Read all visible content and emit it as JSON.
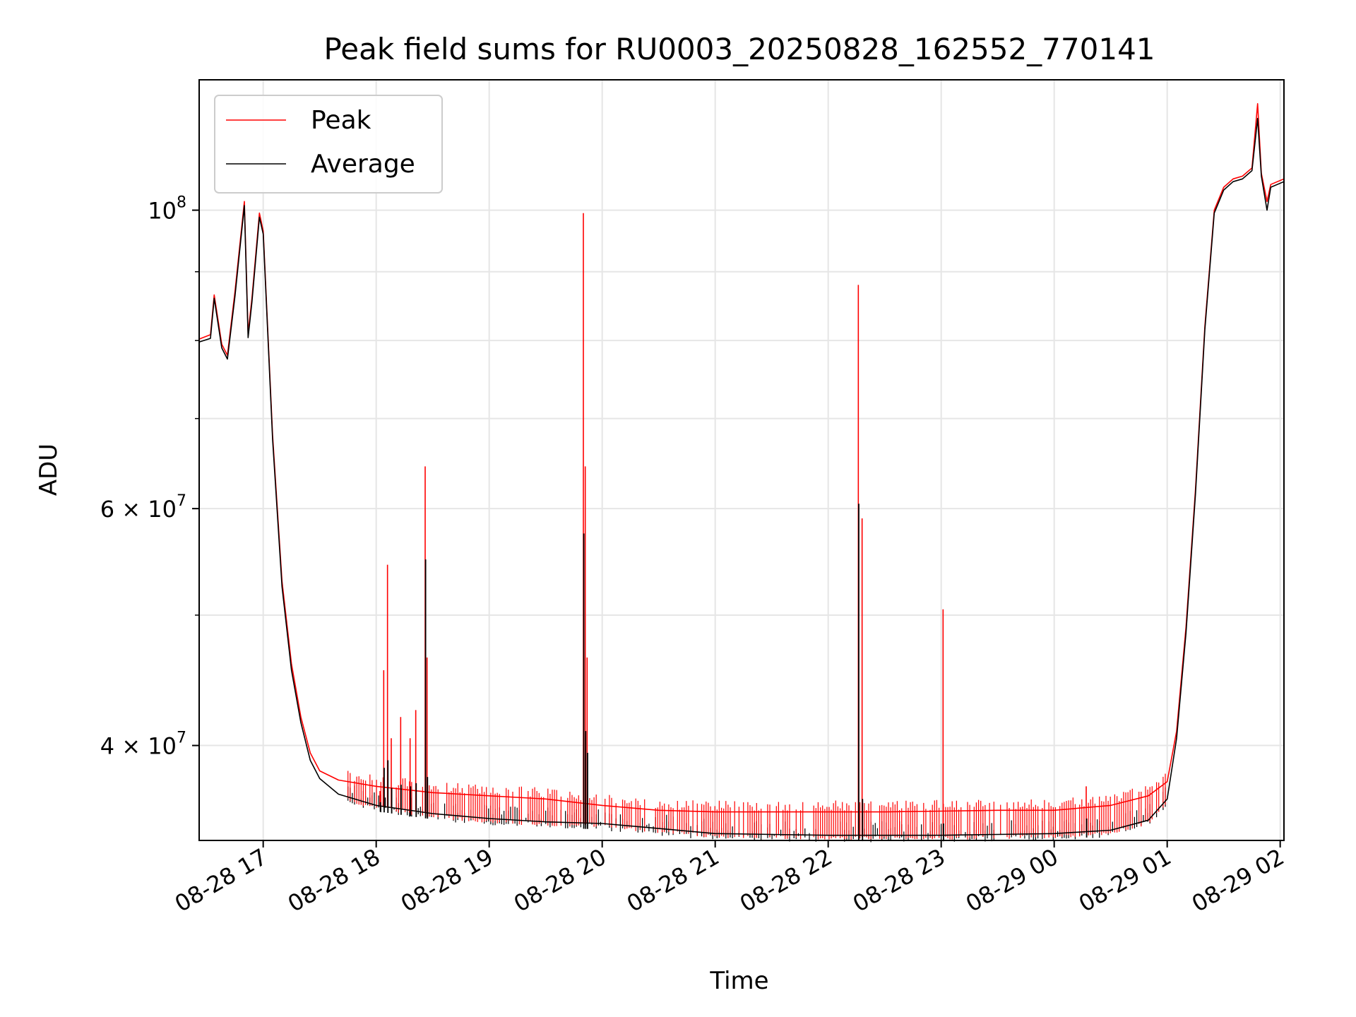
{
  "chart_data": {
    "type": "line",
    "title": "Peak field sums for RU0003_20250828_162552_770141",
    "xlabel": "Time",
    "ylabel": "ADU",
    "x_range": [
      "2025-08-28 16:26",
      "2025-08-29 02:02"
    ],
    "y_scale": "log",
    "ylim": [
      34000000,
      125000000
    ],
    "grid": true,
    "legend_position": "top-left",
    "x_ticks": [
      "08-28 17",
      "08-28 18",
      "08-28 19",
      "08-28 20",
      "08-28 21",
      "08-28 22",
      "08-28 23",
      "08-29 00",
      "08-29 01",
      "08-29 02"
    ],
    "y_ticks": [
      {
        "value": 40000000,
        "base": "4",
        "mult": "×",
        "exp_base": "10",
        "exp": "7"
      },
      {
        "value": 60000000,
        "base": "6",
        "mult": "×",
        "exp_base": "10",
        "exp": "7"
      },
      {
        "value": 100000000,
        "base": "",
        "mult": "",
        "exp_base": "10",
        "exp": "8"
      }
    ],
    "y_minor_ticks": [
      50000000,
      70000000,
      80000000,
      90000000
    ],
    "series": [
      {
        "name": "Peak",
        "color": "#ff0000",
        "x": [
          "2025-08-28 16:26",
          "2025-08-28 16:32",
          "2025-08-28 16:34",
          "2025-08-28 16:38",
          "2025-08-28 16:41",
          "2025-08-28 16:45",
          "2025-08-28 16:50",
          "2025-08-28 16:52",
          "2025-08-28 16:54",
          "2025-08-28 16:58",
          "2025-08-28 17:00",
          "2025-08-28 17:05",
          "2025-08-28 17:10",
          "2025-08-28 17:15",
          "2025-08-28 17:20",
          "2025-08-28 17:25",
          "2025-08-28 17:30",
          "2025-08-28 17:40",
          "2025-08-28 18:00",
          "2025-08-28 18:30",
          "2025-08-28 19:00",
          "2025-08-28 19:30",
          "2025-08-28 20:00",
          "2025-08-28 20:30",
          "2025-08-28 21:00",
          "2025-08-28 21:30",
          "2025-08-28 22:00",
          "2025-08-28 22:30",
          "2025-08-28 23:00",
          "2025-08-28 23:30",
          "2025-08-29 00:00",
          "2025-08-29 00:30",
          "2025-08-29 00:50",
          "2025-08-29 01:00",
          "2025-08-29 01:05",
          "2025-08-29 01:10",
          "2025-08-29 01:15",
          "2025-08-29 01:20",
          "2025-08-29 01:25",
          "2025-08-29 01:30",
          "2025-08-29 01:35",
          "2025-08-29 01:40",
          "2025-08-29 01:45",
          "2025-08-29 01:48",
          "2025-08-29 01:50",
          "2025-08-29 01:53",
          "2025-08-29 01:55",
          "2025-08-29 02:02"
        ],
        "y": [
          80200000,
          80800000,
          86500000,
          79500000,
          78000000,
          87000000,
          101500000,
          81000000,
          86000000,
          99500000,
          96500000,
          68000000,
          53000000,
          46000000,
          42000000,
          39500000,
          38300000,
          37700000,
          37300000,
          36900000,
          36700000,
          36500000,
          36100000,
          35800000,
          35700000,
          35700000,
          35700000,
          35700000,
          35750000,
          35800000,
          35800000,
          36100000,
          36700000,
          37600000,
          41000000,
          49000000,
          62000000,
          82000000,
          100000000,
          104000000,
          105500000,
          106000000,
          107500000,
          120000000,
          106500000,
          101500000,
          104500000,
          105500000
        ]
      },
      {
        "name": "Average",
        "color": "#000000",
        "x": [
          "2025-08-28 16:26",
          "2025-08-28 16:32",
          "2025-08-28 16:34",
          "2025-08-28 16:38",
          "2025-08-28 16:41",
          "2025-08-28 16:45",
          "2025-08-28 16:50",
          "2025-08-28 16:52",
          "2025-08-28 16:54",
          "2025-08-28 16:58",
          "2025-08-28 17:00",
          "2025-08-28 17:05",
          "2025-08-28 17:10",
          "2025-08-28 17:15",
          "2025-08-28 17:20",
          "2025-08-28 17:25",
          "2025-08-28 17:30",
          "2025-08-28 17:40",
          "2025-08-28 18:00",
          "2025-08-28 18:30",
          "2025-08-28 19:00",
          "2025-08-28 19:30",
          "2025-08-28 20:00",
          "2025-08-28 20:30",
          "2025-08-28 21:00",
          "2025-08-28 21:30",
          "2025-08-28 22:00",
          "2025-08-28 22:30",
          "2025-08-28 23:00",
          "2025-08-28 23:30",
          "2025-08-29 00:00",
          "2025-08-29 00:30",
          "2025-08-29 00:50",
          "2025-08-29 01:00",
          "2025-08-29 01:05",
          "2025-08-29 01:10",
          "2025-08-29 01:15",
          "2025-08-29 01:20",
          "2025-08-29 01:25",
          "2025-08-29 01:30",
          "2025-08-29 01:35",
          "2025-08-29 01:40",
          "2025-08-29 01:45",
          "2025-08-29 01:48",
          "2025-08-29 01:50",
          "2025-08-29 01:53",
          "2025-08-29 01:55",
          "2025-08-29 02:02"
        ],
        "y": [
          79800000,
          80300000,
          86000000,
          79000000,
          77500000,
          86300000,
          100800000,
          80400000,
          85400000,
          98800000,
          96000000,
          67500000,
          52500000,
          45500000,
          41600000,
          39000000,
          37800000,
          36800000,
          36100000,
          35600000,
          35300000,
          35100000,
          35000000,
          34700000,
          34400000,
          34350000,
          34300000,
          34300000,
          34300000,
          34350000,
          34400000,
          34600000,
          35200000,
          36500000,
          40500000,
          48500000,
          61500000,
          81500000,
          99500000,
          103500000,
          105000000,
          105500000,
          107000000,
          117000000,
          106000000,
          100000000,
          104000000,
          105000000
        ]
      }
    ],
    "spikes": [
      {
        "x": "2025-08-28 18:02",
        "peak": 37000000,
        "avg": 36300000
      },
      {
        "x": "2025-08-28 18:04",
        "peak": 45500000,
        "avg": 38500000
      },
      {
        "x": "2025-08-28 18:06",
        "peak": 54500000,
        "avg": 39000000
      },
      {
        "x": "2025-08-28 18:08",
        "peak": 40500000,
        "avg": 37200000
      },
      {
        "x": "2025-08-28 18:13",
        "peak": 42000000,
        "avg": 37400000
      },
      {
        "x": "2025-08-28 18:18",
        "peak": 40500000,
        "avg": 37300000
      },
      {
        "x": "2025-08-28 18:21",
        "peak": 42500000,
        "avg": 37500000
      },
      {
        "x": "2025-08-28 18:26",
        "peak": 64500000,
        "avg": 55000000
      },
      {
        "x": "2025-08-28 18:27",
        "peak": 46500000,
        "avg": 37900000
      },
      {
        "x": "2025-08-28 19:50",
        "peak": 99500000,
        "avg": 57500000
      },
      {
        "x": "2025-08-28 19:51",
        "peak": 64500000,
        "avg": 41000000
      },
      {
        "x": "2025-08-28 19:52",
        "peak": 46500000,
        "avg": 39500000
      },
      {
        "x": "2025-08-28 22:16",
        "peak": 88000000,
        "avg": 60500000
      },
      {
        "x": "2025-08-28 22:18",
        "peak": 59000000,
        "avg": 36500000
      },
      {
        "x": "2025-08-28 23:01",
        "peak": 50500000,
        "avg": 35000000
      },
      {
        "x": "2025-08-29 00:17",
        "peak": 37300000,
        "avg": 35300000
      }
    ]
  }
}
